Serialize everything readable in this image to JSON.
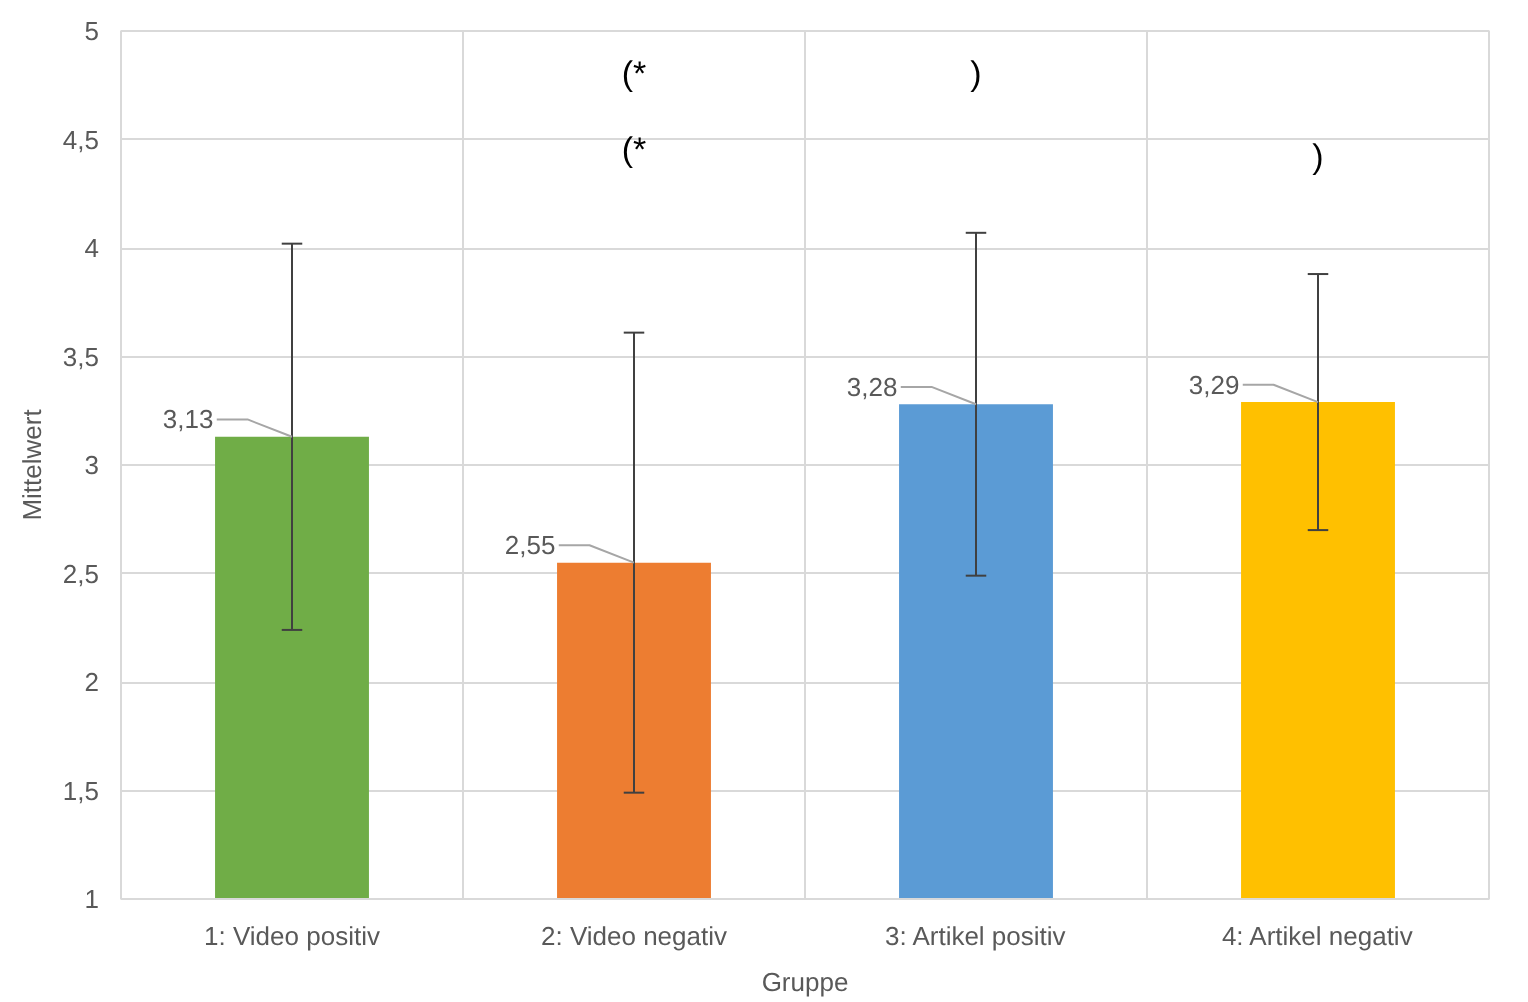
{
  "chart_data": {
    "type": "bar",
    "xlabel": "Gruppe",
    "ylabel": "Mittelwert",
    "categories": [
      "1: Video positiv",
      "2: Video negativ",
      "3: Artikel positiv",
      "4: Artikel negativ"
    ],
    "values": [
      3.13,
      2.55,
      3.28,
      3.29
    ],
    "colors": [
      "#70ad47",
      "#ed7d31",
      "#5b9bd5",
      "#ffc000"
    ],
    "errors": [
      [
        2.24,
        4.02
      ],
      [
        1.49,
        3.61
      ],
      [
        2.49,
        4.07
      ],
      [
        2.7,
        3.88
      ]
    ],
    "value_labels": [
      "3,13",
      "2,55",
      "3,28",
      "3,29"
    ],
    "ylim": [
      1,
      5
    ],
    "yticks": [
      1,
      {
        "value": 1.5,
        "label": "1,5"
      },
      2,
      {
        "value": 2.5,
        "label": "2,5"
      },
      3,
      {
        "value": 3.5,
        "label": "3,5"
      },
      4,
      {
        "value": 4.5,
        "label": "4,5"
      },
      5
    ],
    "grid": true,
    "annotations": [
      "(*",
      "(*",
      ")",
      ")"
    ]
  }
}
